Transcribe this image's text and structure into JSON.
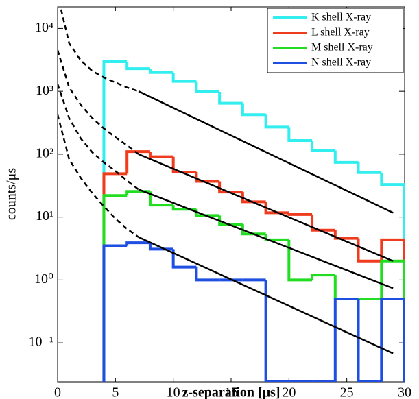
{
  "chart_data": {
    "type": "histogram",
    "xlabel": "z-separation [μs]",
    "ylabel": "counts/μs",
    "bins": [
      4,
      6,
      8,
      10,
      12,
      14,
      16,
      18,
      20,
      22,
      24,
      26,
      28,
      30
    ],
    "series": [
      {
        "name": "K shell X-ray",
        "color": "#33eeee",
        "values": [
          2950,
          2290,
          1990,
          1440,
          980,
          645,
          425,
          270,
          165,
          115,
          74,
          51,
          33
        ]
      },
      {
        "name": "L shell X-ray",
        "color": "#f03c1e",
        "values": [
          49,
          110,
          91,
          52,
          37,
          25,
          17.5,
          11.7,
          11,
          6.2,
          4.6,
          2.0,
          4.35
        ]
      },
      {
        "name": "M shell X-ray",
        "color": "#22dd22",
        "values": [
          22,
          25.6,
          15.5,
          13.3,
          10.6,
          7.7,
          5.4,
          4.35,
          1.0,
          1.2,
          0.5,
          0.5,
          2.0
        ]
      },
      {
        "name": "N shell X-ray",
        "color": "#1f4fe0",
        "values": [
          3.5,
          3.9,
          3.1,
          1.6,
          1.0,
          1.0,
          1.0,
          0,
          0,
          0,
          0.5,
          0,
          0.5
        ]
      }
    ],
    "fit_lines": [
      {
        "style": "dashed",
        "x": [
          0.3,
          1,
          2,
          3,
          4,
          5,
          6,
          7
        ],
        "values": [
          20000,
          5800,
          3100,
          2100,
          1660,
          1380,
          1150,
          1000
        ]
      },
      {
        "style": "solid",
        "x": [
          7,
          29
        ],
        "values": [
          1000,
          11.7
        ]
      },
      {
        "style": "dashed",
        "x": [
          0,
          1,
          2,
          3,
          4,
          5,
          6,
          7
        ],
        "values": [
          4500,
          1150,
          610,
          375,
          257,
          186,
          138,
          100
        ]
      },
      {
        "style": "solid",
        "x": [
          7,
          29
        ],
        "values": [
          100,
          2.0
        ]
      },
      {
        "style": "dashed",
        "x": [
          0,
          1,
          2,
          3,
          4,
          5,
          6,
          7
        ],
        "values": [
          1300,
          375,
          178,
          107,
          74,
          54,
          38,
          27.5
        ]
      },
      {
        "style": "solid",
        "x": [
          7,
          29
        ],
        "values": [
          27.5,
          0.74
        ]
      },
      {
        "style": "dashed",
        "x": [
          0,
          1,
          2,
          3,
          4,
          5,
          6,
          7
        ],
        "values": [
          425,
          83,
          42,
          24,
          14.8,
          9.4,
          6.5,
          4.8
        ]
      },
      {
        "style": "solid",
        "x": [
          7,
          29
        ],
        "values": [
          4.8,
          0.068
        ]
      }
    ],
    "xlim": [
      0,
      30
    ],
    "xticks": [
      0,
      5,
      10,
      15,
      20,
      25,
      30
    ],
    "ylim": [
      0.024,
      22000
    ],
    "ylog": true,
    "yticks": [
      {
        "value": 0.1,
        "label": "10⁻¹"
      },
      {
        "value": 1,
        "label": "10⁰"
      },
      {
        "value": 10,
        "label": "10¹"
      },
      {
        "value": 100,
        "label": "10²"
      },
      {
        "value": 1000,
        "label": "10³"
      },
      {
        "value": 10000,
        "label": "10⁴"
      }
    ],
    "legend": "upper right"
  }
}
